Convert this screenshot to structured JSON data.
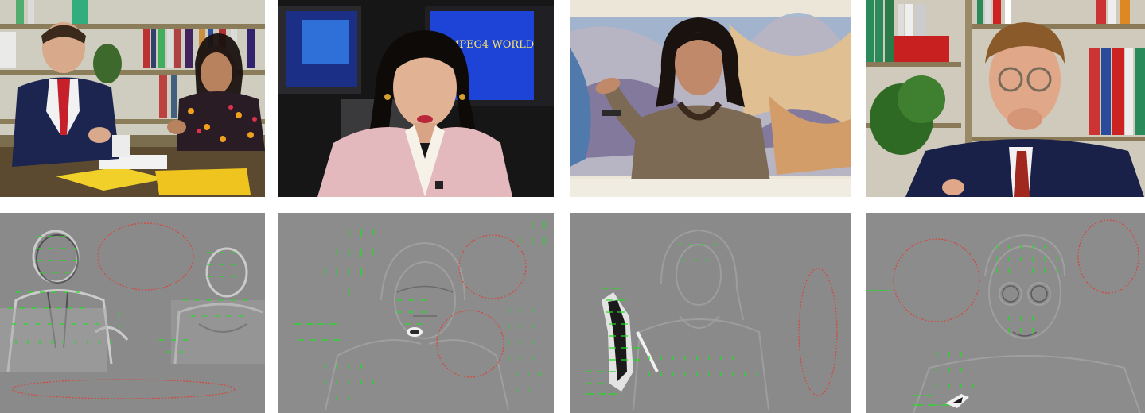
{
  "frames": [
    {
      "id": "frame-1",
      "scene": "two-people-at-desk"
    },
    {
      "id": "frame-2",
      "scene": "news-anchor"
    },
    {
      "id": "frame-3",
      "scene": "woman-signing"
    },
    {
      "id": "frame-4",
      "scene": "man-with-glasses"
    }
  ],
  "frame2_monitor_text": "MPEG4 WORLD",
  "colors": {
    "motion_vectors": "#22dd22",
    "ellipse_outline": "#d9443a",
    "residual_gray": "#8c8c8c"
  }
}
